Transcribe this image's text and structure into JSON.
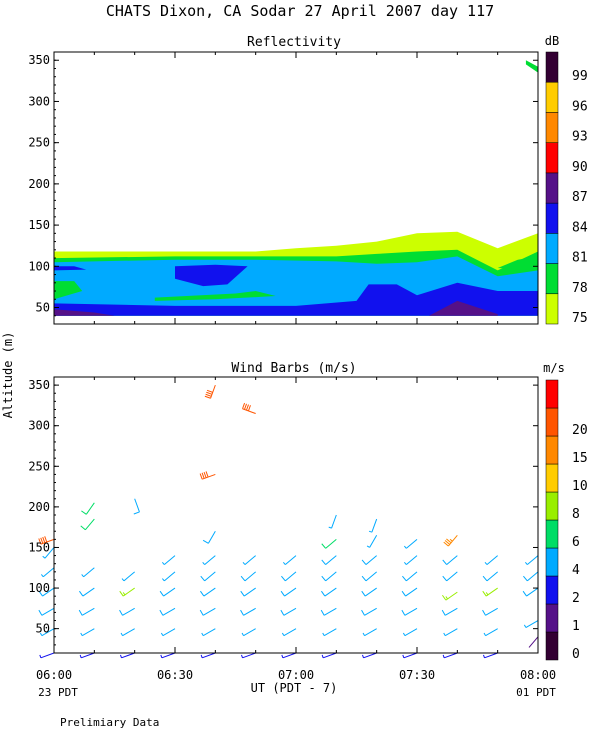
{
  "title": "CHATS Dixon, CA  Sodar  27 April 2007  day 117",
  "ylabel": "Altitude (m)",
  "xlabel": "UT  (PDT - 7)",
  "x_start_local": "23 PDT",
  "x_end_local": "01 PDT",
  "footnote": "Prelimiary Data",
  "chart_data": [
    {
      "type": "heatmap",
      "title": "Reflectivity",
      "colorbar_unit": "dB",
      "x_ticks": [
        "06:00",
        "06:30",
        "07:00",
        "07:30",
        "08:00"
      ],
      "y_ticks": [
        50,
        100,
        150,
        200,
        250,
        300,
        350
      ],
      "ylim": [
        30,
        360
      ],
      "levels": [
        {
          "label": "75",
          "color": "#ccff00"
        },
        {
          "label": "78",
          "color": "#00dd33"
        },
        {
          "label": "81",
          "color": "#00aaff"
        },
        {
          "label": "84",
          "color": "#1111ee"
        },
        {
          "label": "87",
          "color": "#551188"
        },
        {
          "label": "90",
          "color": "#ff0000"
        },
        {
          "label": "93",
          "color": "#ff8800"
        },
        {
          "label": "96",
          "color": "#ffcc00"
        },
        {
          "label": "99",
          "color": "#330033"
        }
      ],
      "regions": [
        {
          "level": "75",
          "points": [
            [
              "06:00",
              118
            ],
            [
              "06:20",
              118
            ],
            [
              "06:40",
              118
            ],
            [
              "06:50",
              118
            ],
            [
              "07:00",
              122
            ],
            [
              "07:10",
              125
            ],
            [
              "07:20",
              130
            ],
            [
              "07:30",
              140
            ],
            [
              "07:40",
              142
            ],
            [
              "07:50",
              122
            ],
            [
              "08:00",
              140
            ],
            [
              "08:00",
              40
            ],
            [
              "06:00",
              40
            ]
          ]
        },
        {
          "level": "78",
          "points": [
            [
              "06:00",
              110
            ],
            [
              "06:30",
              112
            ],
            [
              "06:50",
              112
            ],
            [
              "07:10",
              112
            ],
            [
              "07:20",
              115
            ],
            [
              "07:30",
              118
            ],
            [
              "07:40",
              120
            ],
            [
              "07:50",
              95
            ],
            [
              "08:00",
              118
            ],
            [
              "08:00",
              40
            ],
            [
              "06:00",
              40
            ]
          ]
        },
        {
          "level": "81",
          "points": [
            [
              "06:00",
              105
            ],
            [
              "06:30",
              108
            ],
            [
              "06:50",
              108
            ],
            [
              "07:10",
              106
            ],
            [
              "07:20",
              103
            ],
            [
              "07:30",
              105
            ],
            [
              "07:40",
              112
            ],
            [
              "07:50",
              88
            ],
            [
              "08:00",
              95
            ],
            [
              "08:00",
              40
            ],
            [
              "06:00",
              40
            ]
          ]
        },
        {
          "level": "78",
          "points": [
            [
              "06:00",
              82
            ],
            [
              "06:05",
              82
            ],
            [
              "06:07",
              70
            ],
            [
              "06:00",
              60
            ]
          ]
        },
        {
          "level": "78",
          "points": [
            [
              "06:25",
              62
            ],
            [
              "06:45",
              67
            ],
            [
              "06:50",
              70
            ],
            [
              "06:55",
              64
            ],
            [
              "06:40",
              60
            ],
            [
              "06:25",
              58
            ]
          ]
        },
        {
          "level": "78",
          "points": [
            [
              "07:50",
              98
            ],
            [
              "07:55",
              108
            ],
            [
              "08:00",
              112
            ],
            [
              "08:00",
              95
            ]
          ]
        },
        {
          "level": "84",
          "points": [
            [
              "06:00",
              55
            ],
            [
              "06:30",
              52
            ],
            [
              "07:00",
              52
            ],
            [
              "07:15",
              58
            ],
            [
              "07:18",
              78
            ],
            [
              "07:25",
              78
            ],
            [
              "07:30",
              65
            ],
            [
              "07:40",
              80
            ],
            [
              "07:50",
              70
            ],
            [
              "08:00",
              70
            ],
            [
              "08:00",
              40
            ],
            [
              "06:00",
              40
            ]
          ]
        },
        {
          "level": "84",
          "points": [
            [
              "06:30",
              100
            ],
            [
              "06:40",
              102
            ],
            [
              "06:48",
              100
            ],
            [
              "06:43",
              78
            ],
            [
              "06:37",
              76
            ],
            [
              "06:30",
              85
            ]
          ]
        },
        {
          "level": "84",
          "points": [
            [
              "06:00",
              100
            ],
            [
              "06:05",
              100
            ],
            [
              "06:08",
              96
            ],
            [
              "06:00",
              95
            ]
          ]
        },
        {
          "level": "87",
          "points": [
            [
              "06:00",
              48
            ],
            [
              "06:10",
              44
            ],
            [
              "06:15",
              40
            ],
            [
              "06:00",
              40
            ]
          ]
        },
        {
          "level": "87",
          "points": [
            [
              "07:33",
              40
            ],
            [
              "07:40",
              58
            ],
            [
              "07:50",
              42
            ],
            [
              "07:50",
              40
            ]
          ]
        },
        {
          "level": "78",
          "points": [
            [
              "07:57",
              350
            ],
            [
              "08:00",
              342
            ],
            [
              "08:00",
              335
            ],
            [
              "07:57",
              345
            ]
          ]
        }
      ]
    },
    {
      "type": "scatter",
      "title": "Wind Barbs (m/s)",
      "colorbar_unit": "m/s",
      "x_ticks": [
        "06:00",
        "06:30",
        "07:00",
        "07:30",
        "08:00"
      ],
      "y_ticks": [
        50,
        100,
        150,
        200,
        250,
        300,
        350
      ],
      "ylim": [
        20,
        360
      ],
      "levels": [
        {
          "label": "0",
          "color": "#330033"
        },
        {
          "label": "1",
          "color": "#551188"
        },
        {
          "label": "2",
          "color": "#1111ee"
        },
        {
          "label": "4",
          "color": "#00aaff"
        },
        {
          "label": "6",
          "color": "#00dd66"
        },
        {
          "label": "8",
          "color": "#99ee00"
        },
        {
          "label": "10",
          "color": "#ffcc00"
        },
        {
          "label": "15",
          "color": "#ff8800"
        },
        {
          "label": "20",
          "color": "#ff5500"
        },
        {
          "label": "",
          "color": "#ff0000"
        }
      ],
      "times": [
        "06:00",
        "06:10",
        "06:20",
        "06:30",
        "06:40",
        "06:50",
        "07:00",
        "07:10",
        "07:20",
        "07:30",
        "07:40",
        "07:50",
        "08:00"
      ],
      "altitudes": [
        20,
        40,
        50,
        60,
        80,
        100,
        120,
        140,
        160,
        180,
        200,
        220,
        240,
        320,
        350
      ],
      "barbs": [
        {
          "t": "06:00",
          "z": 20,
          "speed": 3,
          "dir": 250
        },
        {
          "t": "06:00",
          "z": 50,
          "speed": 4,
          "dir": 240
        },
        {
          "t": "06:00",
          "z": 75,
          "speed": 5,
          "dir": 240
        },
        {
          "t": "06:00",
          "z": 100,
          "speed": 5,
          "dir": 235
        },
        {
          "t": "06:00",
          "z": 125,
          "speed": 4,
          "dir": 230
        },
        {
          "t": "06:00",
          "z": 150,
          "speed": 4,
          "dir": 220
        },
        {
          "t": "06:00",
          "z": 160,
          "speed": 20,
          "dir": 250
        },
        {
          "t": "06:10",
          "z": 20,
          "speed": 3,
          "dir": 250
        },
        {
          "t": "06:10",
          "z": 50,
          "speed": 4,
          "dir": 240
        },
        {
          "t": "06:10",
          "z": 75,
          "speed": 5,
          "dir": 240
        },
        {
          "t": "06:10",
          "z": 100,
          "speed": 5,
          "dir": 235
        },
        {
          "t": "06:10",
          "z": 125,
          "speed": 4,
          "dir": 230
        },
        {
          "t": "06:10",
          "z": 185,
          "speed": 6,
          "dir": 220
        },
        {
          "t": "06:10",
          "z": 205,
          "speed": 6,
          "dir": 215
        },
        {
          "t": "06:20",
          "z": 20,
          "speed": 3,
          "dir": 250
        },
        {
          "t": "06:20",
          "z": 50,
          "speed": 4,
          "dir": 240
        },
        {
          "t": "06:20",
          "z": 75,
          "speed": 5,
          "dir": 240
        },
        {
          "t": "06:20",
          "z": 100,
          "speed": 8,
          "dir": 235
        },
        {
          "t": "06:20",
          "z": 120,
          "speed": 4,
          "dir": 230
        },
        {
          "t": "06:20",
          "z": 210,
          "speed": 5,
          "dir": 160
        },
        {
          "t": "06:30",
          "z": 20,
          "speed": 3,
          "dir": 250
        },
        {
          "t": "06:30",
          "z": 50,
          "speed": 4,
          "dir": 240
        },
        {
          "t": "06:30",
          "z": 75,
          "speed": 5,
          "dir": 240
        },
        {
          "t": "06:30",
          "z": 100,
          "speed": 5,
          "dir": 235
        },
        {
          "t": "06:30",
          "z": 120,
          "speed": 4,
          "dir": 230
        },
        {
          "t": "06:30",
          "z": 140,
          "speed": 4,
          "dir": 230
        },
        {
          "t": "06:40",
          "z": 20,
          "speed": 3,
          "dir": 250
        },
        {
          "t": "06:40",
          "z": 50,
          "speed": 4,
          "dir": 240
        },
        {
          "t": "06:40",
          "z": 75,
          "speed": 5,
          "dir": 240
        },
        {
          "t": "06:40",
          "z": 100,
          "speed": 5,
          "dir": 235
        },
        {
          "t": "06:40",
          "z": 120,
          "speed": 5,
          "dir": 230
        },
        {
          "t": "06:40",
          "z": 140,
          "speed": 4,
          "dir": 230
        },
        {
          "t": "06:40",
          "z": 170,
          "speed": 5,
          "dir": 210
        },
        {
          "t": "06:40",
          "z": 240,
          "speed": 20,
          "dir": 250
        },
        {
          "t": "06:40",
          "z": 350,
          "speed": 21,
          "dir": 200
        },
        {
          "t": "06:50",
          "z": 20,
          "speed": 3,
          "dir": 250
        },
        {
          "t": "06:50",
          "z": 50,
          "speed": 4,
          "dir": 240
        },
        {
          "t": "06:50",
          "z": 75,
          "speed": 5,
          "dir": 240
        },
        {
          "t": "06:50",
          "z": 100,
          "speed": 5,
          "dir": 235
        },
        {
          "t": "06:50",
          "z": 120,
          "speed": 5,
          "dir": 230
        },
        {
          "t": "06:50",
          "z": 140,
          "speed": 4,
          "dir": 230
        },
        {
          "t": "06:50",
          "z": 315,
          "speed": 20,
          "dir": 290
        },
        {
          "t": "07:00",
          "z": 20,
          "speed": 3,
          "dir": 250
        },
        {
          "t": "07:00",
          "z": 50,
          "speed": 4,
          "dir": 240
        },
        {
          "t": "07:00",
          "z": 75,
          "speed": 5,
          "dir": 240
        },
        {
          "t": "07:00",
          "z": 100,
          "speed": 5,
          "dir": 235
        },
        {
          "t": "07:00",
          "z": 120,
          "speed": 5,
          "dir": 230
        },
        {
          "t": "07:00",
          "z": 140,
          "speed": 4,
          "dir": 230
        },
        {
          "t": "07:10",
          "z": 20,
          "speed": 3,
          "dir": 250
        },
        {
          "t": "07:10",
          "z": 50,
          "speed": 4,
          "dir": 240
        },
        {
          "t": "07:10",
          "z": 75,
          "speed": 5,
          "dir": 240
        },
        {
          "t": "07:10",
          "z": 100,
          "speed": 5,
          "dir": 235
        },
        {
          "t": "07:10",
          "z": 120,
          "speed": 5,
          "dir": 230
        },
        {
          "t": "07:10",
          "z": 140,
          "speed": 5,
          "dir": 230
        },
        {
          "t": "07:10",
          "z": 160,
          "speed": 6,
          "dir": 230
        },
        {
          "t": "07:10",
          "z": 190,
          "speed": 4,
          "dir": 200
        },
        {
          "t": "07:20",
          "z": 20,
          "speed": 3,
          "dir": 250
        },
        {
          "t": "07:20",
          "z": 50,
          "speed": 4,
          "dir": 240
        },
        {
          "t": "07:20",
          "z": 75,
          "speed": 5,
          "dir": 240
        },
        {
          "t": "07:20",
          "z": 100,
          "speed": 5,
          "dir": 235
        },
        {
          "t": "07:20",
          "z": 120,
          "speed": 5,
          "dir": 230
        },
        {
          "t": "07:20",
          "z": 140,
          "speed": 5,
          "dir": 230
        },
        {
          "t": "07:20",
          "z": 165,
          "speed": 4,
          "dir": 210
        },
        {
          "t": "07:20",
          "z": 185,
          "speed": 4,
          "dir": 200
        },
        {
          "t": "07:30",
          "z": 20,
          "speed": 3,
          "dir": 250
        },
        {
          "t": "07:30",
          "z": 50,
          "speed": 4,
          "dir": 240
        },
        {
          "t": "07:30",
          "z": 75,
          "speed": 5,
          "dir": 240
        },
        {
          "t": "07:30",
          "z": 100,
          "speed": 5,
          "dir": 235
        },
        {
          "t": "07:30",
          "z": 120,
          "speed": 5,
          "dir": 230
        },
        {
          "t": "07:30",
          "z": 140,
          "speed": 4,
          "dir": 230
        },
        {
          "t": "07:30",
          "z": 160,
          "speed": 4,
          "dir": 230
        },
        {
          "t": "07:40",
          "z": 20,
          "speed": 3,
          "dir": 250
        },
        {
          "t": "07:40",
          "z": 50,
          "speed": 4,
          "dir": 240
        },
        {
          "t": "07:40",
          "z": 75,
          "speed": 5,
          "dir": 240
        },
        {
          "t": "07:40",
          "z": 95,
          "speed": 8,
          "dir": 235
        },
        {
          "t": "07:40",
          "z": 120,
          "speed": 5,
          "dir": 230
        },
        {
          "t": "07:40",
          "z": 140,
          "speed": 5,
          "dir": 230
        },
        {
          "t": "07:40",
          "z": 165,
          "speed": 18,
          "dir": 220
        },
        {
          "t": "07:50",
          "z": 20,
          "speed": 3,
          "dir": 250
        },
        {
          "t": "07:50",
          "z": 50,
          "speed": 4,
          "dir": 240
        },
        {
          "t": "07:50",
          "z": 75,
          "speed": 5,
          "dir": 240
        },
        {
          "t": "07:50",
          "z": 100,
          "speed": 8,
          "dir": 235
        },
        {
          "t": "07:50",
          "z": 120,
          "speed": 5,
          "dir": 230
        },
        {
          "t": "07:50",
          "z": 140,
          "speed": 4,
          "dir": 230
        },
        {
          "t": "08:00",
          "z": 40,
          "speed": 1,
          "dir": 220
        },
        {
          "t": "08:00",
          "z": 60,
          "speed": 4,
          "dir": 240
        },
        {
          "t": "08:00",
          "z": 100,
          "speed": 5,
          "dir": 235
        },
        {
          "t": "08:00",
          "z": 120,
          "speed": 5,
          "dir": 230
        },
        {
          "t": "08:00",
          "z": 140,
          "speed": 4,
          "dir": 230
        }
      ]
    }
  ]
}
